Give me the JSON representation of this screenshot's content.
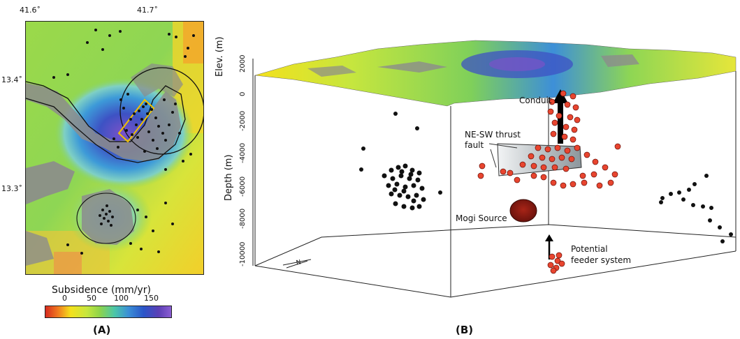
{
  "panel_a": {
    "lon_ticks": [
      "41.6˚",
      "41.7˚"
    ],
    "lat_ticks": [
      "13.4˚",
      "13.3˚"
    ],
    "colorbar_title": "Subsidence (mm/yr)",
    "colorbar_ticks": [
      "0",
      "50",
      "100",
      "150"
    ],
    "label": "(A)"
  },
  "panel_b": {
    "elev_axis_title": "Elev. (m)",
    "elev_ticks": [
      "2000",
      "0"
    ],
    "depth_axis_title": "Depth (m)",
    "depth_ticks": [
      "-2000",
      "-4000",
      "-6000",
      "-8000",
      "-10000"
    ],
    "labels": {
      "conduit": "Conduit",
      "thrust_line1": "NE-SW thrust",
      "thrust_line2": "fault",
      "mogi": "Mogi Source",
      "feeder_line1": "Potential",
      "feeder_line2": "feeder system"
    },
    "north_arrow_label": "N",
    "label": "(B)"
  },
  "colors": {
    "earthquake_black": "#111111",
    "earthquake_red": "#e8452f",
    "mogi_source": "#8b1a12",
    "conduit_arrow": "#000000",
    "fault_box": "#b9c1c6",
    "aoi_box": "#f0c000"
  }
}
